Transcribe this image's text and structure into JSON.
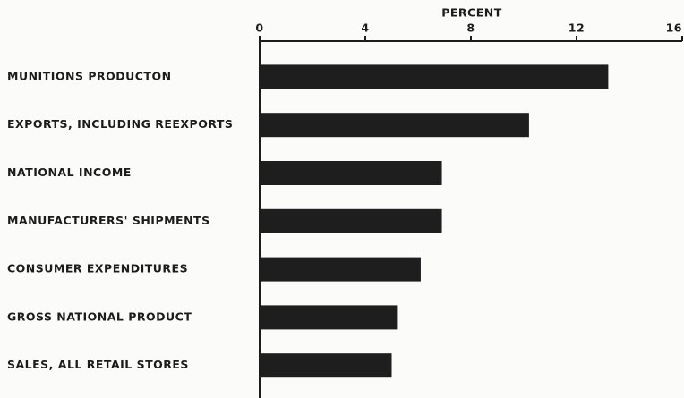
{
  "chart_data": {
    "type": "bar",
    "orientation": "horizontal",
    "xlabel": "PERCENT",
    "categories": [
      "MUNITIONS PRODUCTON",
      "EXPORTS, INCLUDING REEXPORTS",
      "NATIONAL INCOME",
      "MANUFACTURERS' SHIPMENTS",
      "CONSUMER EXPENDITURES",
      "GROSS NATIONAL PRODUCT",
      "SALES, ALL RETAIL STORES"
    ],
    "values": [
      13.2,
      10.2,
      6.9,
      6.9,
      6.1,
      5.2,
      5.0
    ],
    "color": "#1e1e1e",
    "xlim": [
      0,
      16
    ],
    "xticks": [
      0,
      4,
      8,
      12,
      16
    ],
    "grid": false
  }
}
